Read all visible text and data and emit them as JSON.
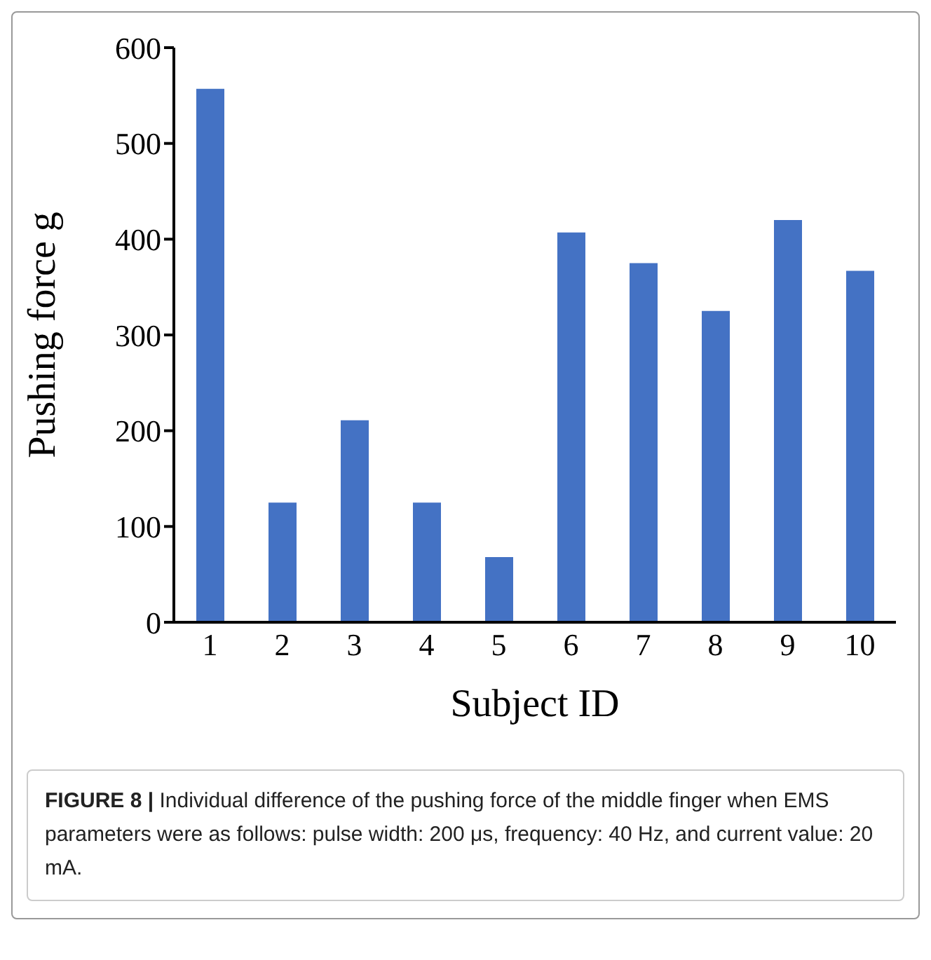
{
  "chart_data": {
    "type": "bar",
    "xlabel": "Subject ID",
    "ylabel": "Pushing force g",
    "categories": [
      "1",
      "2",
      "3",
      "4",
      "5",
      "6",
      "7",
      "8",
      "9",
      "10"
    ],
    "values": [
      557,
      125,
      211,
      125,
      68,
      407,
      375,
      325,
      420,
      367
    ],
    "color": "#4472c4",
    "ylim": [
      0,
      600
    ],
    "yticks": [
      0,
      100,
      200,
      300,
      400,
      500,
      600
    ],
    "grid": false,
    "legend": false,
    "annotations": [
      "FIGURE 8 |",
      "Individual difference of the pushing force of the middle finger when EMS parameters were as follows: pulse width: 200 μs, frequency: 40 Hz, and current value: 20 mA."
    ]
  }
}
